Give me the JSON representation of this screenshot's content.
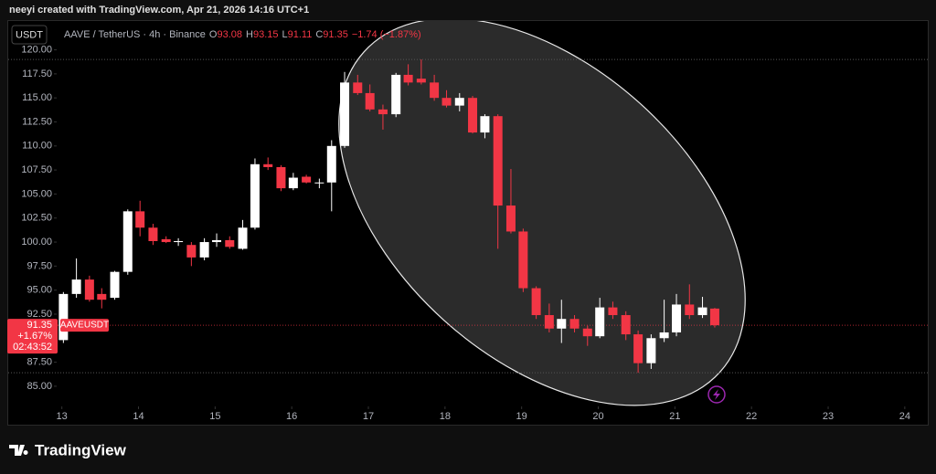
{
  "header": {
    "attribution": "neeyi created with TradingView.com, Apr 21, 2026 14:16 UTC+1"
  },
  "chart_data": {
    "type": "candlestick",
    "currency_button": "USDT",
    "symbol": "AAVE / TetherUS · 4h · Binance",
    "ohlc_labels": [
      "O",
      "H",
      "L",
      "C"
    ],
    "change": "−1.74 (−1.87%)",
    "price_tag": {
      "change": "+1.67%",
      "countdown": "02:43:52",
      "ticker": "AAVEUSDT"
    },
    "up_color": "#ffffff",
    "down_color": "#f23645",
    "x": [
      13.02,
      13.19,
      13.36,
      13.52,
      13.69,
      13.86,
      14.02,
      14.19,
      14.36,
      14.52,
      14.69,
      14.86,
      15.02,
      15.19,
      15.36,
      15.52,
      15.69,
      15.86,
      16.02,
      16.19,
      16.36,
      16.52,
      16.69,
      16.86,
      17.02,
      17.19,
      17.36,
      17.52,
      17.69,
      17.86,
      18.02,
      18.19,
      18.36,
      18.52,
      18.69,
      18.86,
      19.02,
      19.19,
      19.36,
      19.52,
      19.69,
      19.86,
      20.02,
      20.19,
      20.36,
      20.52,
      20.69,
      20.86,
      21.02,
      21.19,
      21.36,
      21.52
    ],
    "open": [
      89.8,
      94.6,
      96.1,
      94.6,
      94.2,
      96.9,
      103.2,
      101.5,
      100.3,
      100.0,
      99.7,
      98.4,
      100.0,
      100.2,
      99.3,
      101.5,
      108.1,
      107.8,
      105.6,
      106.8,
      106.2,
      106.2,
      110.0,
      116.6,
      115.5,
      113.8,
      113.3,
      117.4,
      117.0,
      116.6,
      115.0,
      114.2,
      115.0,
      111.4,
      113.1,
      103.8,
      101.1,
      95.2,
      92.4,
      91.0,
      92.0,
      91.0,
      90.2,
      93.2,
      92.4,
      90.4,
      87.4,
      90.0,
      90.6,
      93.5,
      92.4,
      93.08
    ],
    "high": [
      94.8,
      98.3,
      96.5,
      95.2,
      97.0,
      103.4,
      104.3,
      101.9,
      100.6,
      100.4,
      100.0,
      100.4,
      100.9,
      100.6,
      102.3,
      108.7,
      108.8,
      108.0,
      107.2,
      107.0,
      106.6,
      110.6,
      117.7,
      117.4,
      116.4,
      114.3,
      117.6,
      118.5,
      119.0,
      117.4,
      115.8,
      115.5,
      115.2,
      113.3,
      113.3,
      107.6,
      101.4,
      95.4,
      93.6,
      94.0,
      92.4,
      91.3,
      94.2,
      93.8,
      92.8,
      90.8,
      90.4,
      94.0,
      94.6,
      95.6,
      94.3,
      93.15
    ],
    "low": [
      89.5,
      94.2,
      93.8,
      93.1,
      94.0,
      96.6,
      100.6,
      99.7,
      99.9,
      99.6,
      97.5,
      98.1,
      99.5,
      99.3,
      99.2,
      101.3,
      107.5,
      105.3,
      105.4,
      106.1,
      105.6,
      103.2,
      109.8,
      115.3,
      113.6,
      111.7,
      113.0,
      116.3,
      116.4,
      114.7,
      114.0,
      113.6,
      111.3,
      110.8,
      99.3,
      100.9,
      94.8,
      92.0,
      90.6,
      89.5,
      90.6,
      89.2,
      90.0,
      92.0,
      89.8,
      86.4,
      86.8,
      89.6,
      90.2,
      92.0,
      92.1,
      91.11
    ],
    "close": [
      94.6,
      96.1,
      94.0,
      94.0,
      96.9,
      103.2,
      101.5,
      100.1,
      100.0,
      100.1,
      98.4,
      100.0,
      100.2,
      99.5,
      101.5,
      108.1,
      107.8,
      105.6,
      106.7,
      106.2,
      106.2,
      110.0,
      116.6,
      115.5,
      113.8,
      113.3,
      117.4,
      116.6,
      116.6,
      115.0,
      114.2,
      115.0,
      111.4,
      113.1,
      103.8,
      101.1,
      95.2,
      92.4,
      91.0,
      92.0,
      91.0,
      90.2,
      93.2,
      92.4,
      90.4,
      87.4,
      90.0,
      90.6,
      93.5,
      92.4,
      93.2,
      91.35
    ],
    "xlim": [
      12.3,
      24.3
    ],
    "ylim": [
      82.9,
      123.0
    ],
    "xticks": [
      13,
      14,
      15,
      16,
      17,
      18,
      19,
      20,
      21,
      22,
      23,
      24
    ],
    "yticks": [
      {
        "value": 85,
        "label": "85.00"
      },
      {
        "value": 87.5,
        "label": "87.50"
      },
      {
        "value": 90,
        "label": "90.00"
      },
      {
        "value": 92.5,
        "label": "92.50"
      },
      {
        "value": 95,
        "label": "95.00"
      },
      {
        "value": 97.5,
        "label": "97.50"
      },
      {
        "value": 100,
        "label": "100.00"
      },
      {
        "value": 102.5,
        "label": "102.50"
      },
      {
        "value": 105,
        "label": "105.00"
      },
      {
        "value": 107.5,
        "label": "107.50"
      },
      {
        "value": 110,
        "label": "110.00"
      },
      {
        "value": 112.5,
        "label": "112.50"
      },
      {
        "value": 115,
        "label": "115.00"
      },
      {
        "value": 117.5,
        "label": "117.50"
      },
      {
        "value": 120,
        "label": "120.00"
      }
    ]
  },
  "footer": {
    "brand": "TradingView"
  }
}
